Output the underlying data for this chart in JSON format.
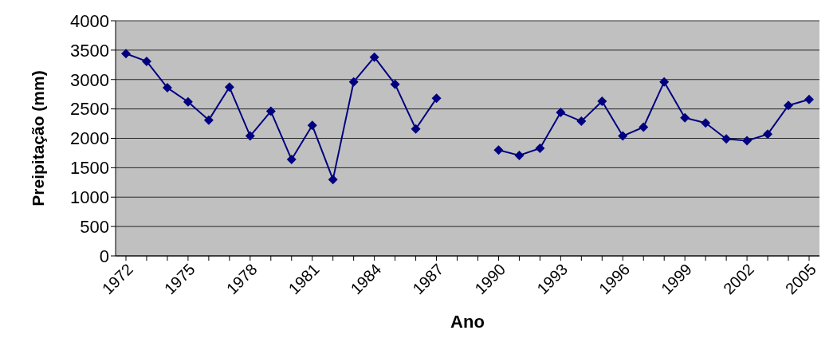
{
  "chart_data": {
    "type": "line",
    "xlabel": "Ano",
    "ylabel": "Preipitação (mm)",
    "categories": [
      "1972",
      null,
      null,
      "1975",
      null,
      null,
      "1978",
      null,
      null,
      "1981",
      null,
      null,
      "1984",
      null,
      null,
      "1987",
      null,
      null,
      "1990",
      null,
      null,
      "1993",
      null,
      null,
      "1996",
      null,
      null,
      "1999",
      null,
      null,
      "2002",
      null,
      null,
      "2005"
    ],
    "series": [
      {
        "color": "#000080",
        "values": [
          3440,
          3310,
          2860,
          2620,
          2310,
          2870,
          2040,
          2460,
          1640,
          2220,
          1300,
          2960,
          3380,
          2920,
          2160,
          2680,
          null,
          null,
          1800,
          1710,
          1830,
          2440,
          2290,
          2630,
          2040,
          2190,
          2960,
          2350,
          2260,
          1990,
          1960,
          2070,
          2560,
          2660
        ]
      }
    ],
    "ylim": [
      0,
      4000
    ],
    "yticks": [
      0,
      500,
      1000,
      1500,
      2000,
      2500,
      3000,
      3500,
      4000
    ],
    "grid": "y",
    "legend": false,
    "marker": "diamond",
    "line_style": "solid"
  }
}
